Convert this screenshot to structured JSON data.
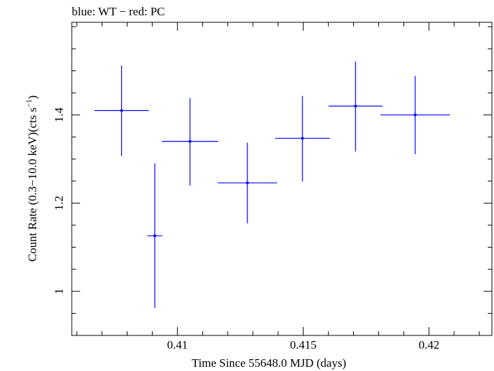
{
  "chart_data": {
    "type": "scatter",
    "title": "blue: WT − red: PC",
    "xlabel": "Time Since 55648.0 MJD (days)",
    "ylabel_main": "Count Rate (0.3−10.0 keV)(cts s",
    "ylabel_sup": "−1",
    "ylabel_close": ")",
    "xlim": [
      0.4058,
      0.4225
    ],
    "ylim": [
      0.9,
      1.61
    ],
    "x_major_ticks": [
      0.41,
      0.415,
      0.42
    ],
    "x_tick_labels": [
      "0.41",
      "0.415",
      "0.42"
    ],
    "y_major_ticks": [
      1.0,
      1.2,
      1.4
    ],
    "y_tick_labels": [
      "1",
      "1.2",
      "1.4"
    ],
    "series": [
      {
        "name": "WT",
        "color": "#0000ff",
        "points": [
          {
            "x": 0.40778,
            "x_lo": 0.4067,
            "x_hi": 0.40886,
            "y": 1.41,
            "y_lo": 1.307,
            "y_hi": 1.512
          },
          {
            "x": 0.4091,
            "x_lo": 0.4088,
            "x_hi": 0.4094,
            "y": 1.126,
            "y_lo": 0.962,
            "y_hi": 1.29
          },
          {
            "x": 0.4105,
            "x_lo": 0.40938,
            "x_hi": 0.41162,
            "y": 1.34,
            "y_lo": 1.24,
            "y_hi": 1.438
          },
          {
            "x": 0.41278,
            "x_lo": 0.4116,
            "x_hi": 0.41396,
            "y": 1.246,
            "y_lo": 1.154,
            "y_hi": 1.337
          },
          {
            "x": 0.41497,
            "x_lo": 0.41388,
            "x_hi": 0.41606,
            "y": 1.347,
            "y_lo": 1.249,
            "y_hi": 1.443
          },
          {
            "x": 0.41708,
            "x_lo": 0.41601,
            "x_hi": 0.41815,
            "y": 1.42,
            "y_lo": 1.317,
            "y_hi": 1.521
          },
          {
            "x": 0.41945,
            "x_lo": 0.41807,
            "x_hi": 0.42083,
            "y": 1.4,
            "y_lo": 1.311,
            "y_hi": 1.488
          }
        ]
      }
    ]
  }
}
